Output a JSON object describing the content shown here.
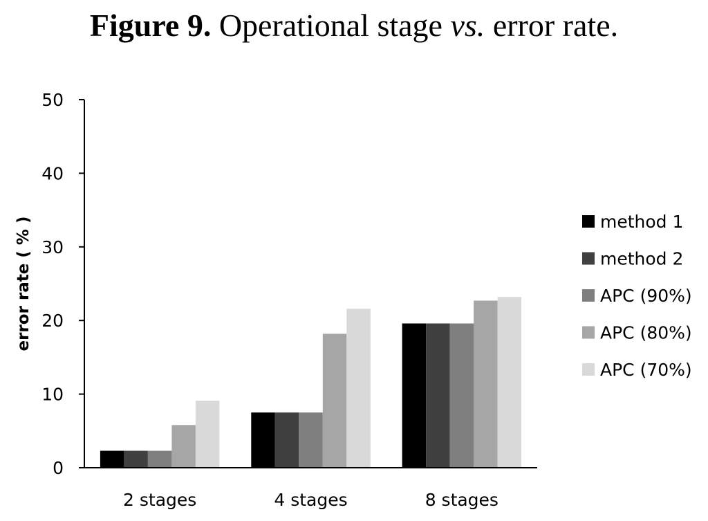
{
  "figure": {
    "title_bold": "Figure 9.",
    "title_part1": " Operational stage ",
    "title_italic": "vs.",
    "title_part2": " error rate."
  },
  "chart_data": {
    "type": "bar",
    "title": "Figure 9. Operational stage vs. error rate.",
    "xlabel": "",
    "ylabel": "error rate ( % )",
    "categories": [
      "2 stages",
      "4 stages",
      "8 stages"
    ],
    "series": [
      {
        "name": "method 1",
        "color": "#000000",
        "values": [
          2.3,
          7.5,
          19.6
        ]
      },
      {
        "name": "method 2",
        "color": "#404040",
        "values": [
          2.3,
          7.5,
          19.6
        ]
      },
      {
        "name": "APC (90%)",
        "color": "#7f7f7f",
        "values": [
          2.3,
          7.5,
          19.6
        ]
      },
      {
        "name": "APC (80%)",
        "color": "#a6a6a6",
        "values": [
          5.8,
          18.2,
          22.7
        ]
      },
      {
        "name": "APC (70%)",
        "color": "#d9d9d9",
        "values": [
          9.1,
          21.6,
          23.2
        ]
      }
    ],
    "ylim": [
      0,
      50
    ],
    "yticks": [
      0,
      10,
      20,
      30,
      40,
      50
    ],
    "grid": false,
    "legend_position": "right"
  }
}
